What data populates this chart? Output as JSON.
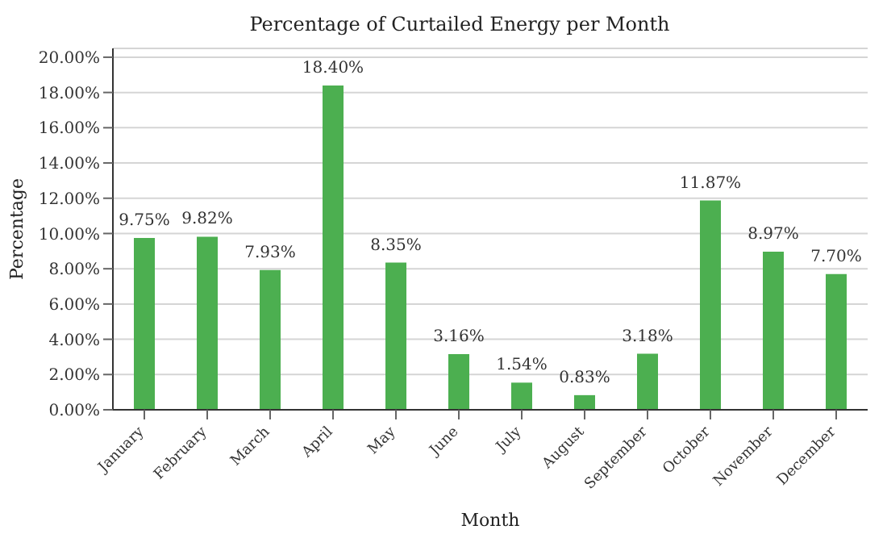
{
  "chart_data": {
    "type": "bar",
    "title": "Percentage of Curtailed Energy per Month",
    "xlabel": "Month",
    "ylabel": "Percentage",
    "categories": [
      "January",
      "February",
      "March",
      "April",
      "May",
      "June",
      "July",
      "August",
      "September",
      "October",
      "November",
      "December"
    ],
    "values": [
      9.75,
      9.82,
      7.93,
      18.4,
      8.35,
      3.16,
      1.54,
      0.83,
      3.18,
      11.87,
      8.97,
      7.7
    ],
    "value_labels": [
      "9.75%",
      "9.82%",
      "7.93%",
      "18.40%",
      "8.35%",
      "3.16%",
      "1.54%",
      "0.83%",
      "3.18%",
      "11.87%",
      "8.97%",
      "7.70%"
    ],
    "color": "#4caf50",
    "ylim": [
      0,
      20.5
    ],
    "yticks": [
      {
        "value": 0,
        "label": "0.00%"
      },
      {
        "value": 2,
        "label": "2.00%"
      },
      {
        "value": 4,
        "label": "4.00%"
      },
      {
        "value": 6,
        "label": "6.00%"
      },
      {
        "value": 8,
        "label": "8.00%"
      },
      {
        "value": 10,
        "label": "10.00%"
      },
      {
        "value": 12,
        "label": "12.00%"
      },
      {
        "value": 14,
        "label": "14.00%"
      },
      {
        "value": 16,
        "label": "16.00%"
      },
      {
        "value": 18,
        "label": "18.00%"
      },
      {
        "value": 20,
        "label": "20.00%"
      }
    ],
    "grid": "y"
  }
}
